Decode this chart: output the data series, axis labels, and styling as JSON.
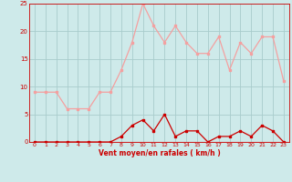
{
  "x": [
    0,
    1,
    2,
    3,
    4,
    5,
    6,
    7,
    8,
    9,
    10,
    11,
    12,
    13,
    14,
    15,
    16,
    17,
    18,
    19,
    20,
    21,
    22,
    23
  ],
  "rafales": [
    9,
    9,
    9,
    6,
    6,
    6,
    9,
    9,
    13,
    18,
    25,
    21,
    18,
    21,
    18,
    16,
    16,
    19,
    13,
    18,
    16,
    19,
    19,
    11
  ],
  "moyen": [
    0,
    0,
    0,
    0,
    0,
    0,
    0,
    0,
    1,
    3,
    4,
    2,
    5,
    1,
    2,
    2,
    0,
    1,
    1,
    2,
    1,
    3,
    2,
    0
  ],
  "line_color_light": "#f4a0a0",
  "line_color_dark": "#cc0000",
  "bg_color": "#ceeaea",
  "grid_color": "#a8cccc",
  "xlabel": "Vent moyen/en rafales ( km/h )",
  "xlim": [
    -0.5,
    23.5
  ],
  "ylim": [
    0,
    25
  ],
  "yticks": [
    0,
    5,
    10,
    15,
    20,
    25
  ],
  "xticks": [
    0,
    1,
    2,
    3,
    4,
    5,
    6,
    7,
    8,
    9,
    10,
    11,
    12,
    13,
    14,
    15,
    16,
    17,
    18,
    19,
    20,
    21,
    22,
    23
  ]
}
